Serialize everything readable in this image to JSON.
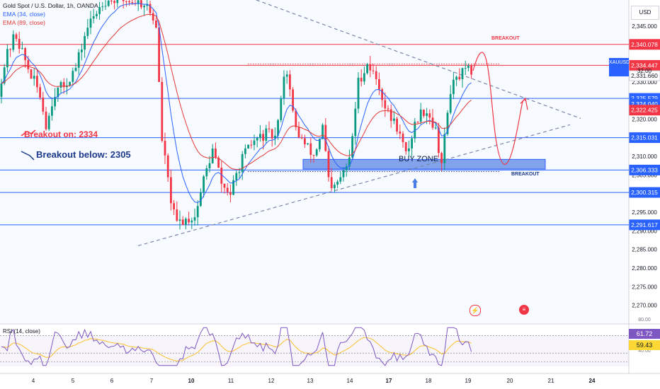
{
  "header": {
    "symbol": "Gold Spot / U.S. Dollar, 1h, OANDA",
    "ema1": "EMA (34, close)",
    "ema2": "EMA (89, close)",
    "currency": "USD"
  },
  "chart_data": {
    "type": "candlestick",
    "price_range": [
      2265,
      2352
    ],
    "y_ticks": [
      2270,
      2275,
      2280,
      2285,
      2290,
      2295,
      2300,
      2305,
      2310,
      2315,
      2320,
      2325,
      2330,
      2335,
      2340,
      2345
    ],
    "x_ticks": [
      {
        "label": "4",
        "bold": false
      },
      {
        "label": "5",
        "bold": false
      },
      {
        "label": "6",
        "bold": false
      },
      {
        "label": "7",
        "bold": false
      },
      {
        "label": "10",
        "bold": true
      },
      {
        "label": "11",
        "bold": false
      },
      {
        "label": "12",
        "bold": false
      },
      {
        "label": "13",
        "bold": false
      },
      {
        "label": "14",
        "bold": false
      },
      {
        "label": "17",
        "bold": true
      },
      {
        "label": "18",
        "bold": false
      },
      {
        "label": "19",
        "bold": false
      },
      {
        "label": "20",
        "bold": false
      },
      {
        "label": "21",
        "bold": false
      },
      {
        "label": "24",
        "bold": true
      }
    ],
    "levels": [
      2340.078,
      2334.447,
      2325.579,
      2315.031,
      2306.333,
      2300.315,
      2291.617
    ],
    "price_tags": [
      {
        "label": "2,340.078",
        "value": 2340.078,
        "color": "#f23645"
      },
      {
        "label": "2,334.447",
        "value": 2334.447,
        "color": "#f23645"
      },
      {
        "label": "2,331.660",
        "value": 2331.66,
        "color": "#ffffff"
      },
      {
        "label": "2,325.579",
        "value": 2325.579,
        "color": "#2962ff"
      },
      {
        "label": "2,324.040",
        "value": 2324.04,
        "color": "#2962ff"
      },
      {
        "label": "2,322.425",
        "value": 2322.425,
        "color": "#f23645"
      },
      {
        "label": "2,315.031",
        "value": 2315.031,
        "color": "#2962ff"
      },
      {
        "label": "2,306.333",
        "value": 2306.333,
        "color": "#2962ff"
      },
      {
        "label": "2,300.315",
        "value": 2300.315,
        "color": "#2962ff"
      },
      {
        "label": "2,291.617",
        "value": 2291.617,
        "color": "#2962ff"
      }
    ],
    "symbol_badge": {
      "label": "XAUUSD",
      "price": "2,331.660",
      "countdown": "32:00"
    },
    "buy_zone": {
      "label": "BUY ZONE",
      "low": 2306.6,
      "high": 2309.2
    },
    "annotations": {
      "breakout_on": "Breakout on: 2334",
      "breakout_below": "Breakout below: 2305",
      "breakout_upper": "BREAKOUT",
      "breakout_lower": "BREAKOUT"
    },
    "colors": {
      "up": "#089981",
      "down": "#f23645",
      "ema34": "#2962ff",
      "ema89": "#e53935",
      "level": "#2962ff",
      "resistance": "#f23645"
    },
    "rsi": {
      "title": "RSI (14, close)",
      "value": "61.72",
      "ma_value": "59.43",
      "levels": [
        30,
        50,
        70
      ],
      "top_label": "80.00",
      "bottom_label": "40.00"
    }
  }
}
